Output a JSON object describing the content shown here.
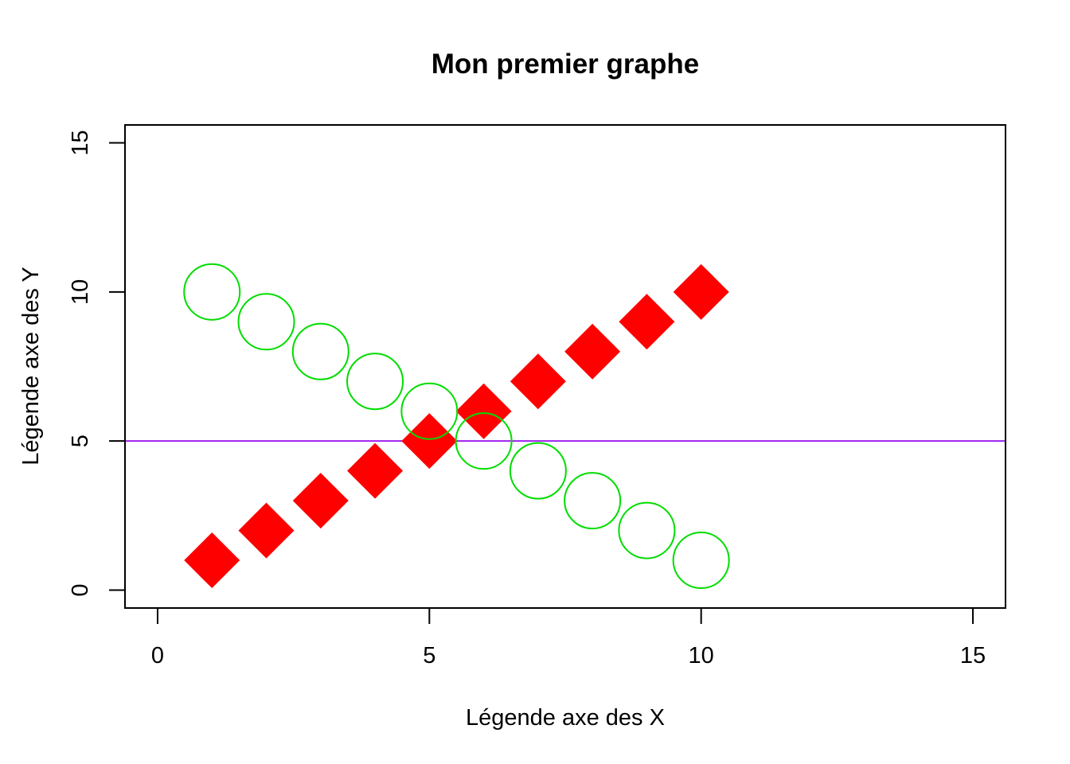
{
  "chart_data": {
    "type": "scatter",
    "title": "Mon premier graphe",
    "xlabel": "Légende axe des X",
    "ylabel": "Légende axe des Y",
    "xlim": [
      -0.6,
      15.6
    ],
    "ylim": [
      -0.6,
      15.6
    ],
    "x_ticks": [
      "0",
      "5",
      "10",
      "15"
    ],
    "y_ticks": [
      "0",
      "5",
      "10",
      "15"
    ],
    "grid": false,
    "legend": "none",
    "series": [
      {
        "marker": "filled-diamond",
        "color": "#FF0000",
        "x": [
          1,
          2,
          3,
          4,
          5,
          6,
          7,
          8,
          9,
          10
        ],
        "y": [
          1,
          2,
          3,
          4,
          5,
          6,
          7,
          8,
          9,
          10
        ]
      },
      {
        "marker": "open-circle",
        "color": "#00DD00",
        "x": [
          1,
          2,
          3,
          4,
          5,
          6,
          7,
          8,
          9,
          10
        ],
        "y": [
          10,
          9,
          8,
          7,
          6,
          5,
          4,
          3,
          2,
          1
        ]
      }
    ],
    "hline": {
      "y": 5,
      "color": "#A020F0"
    }
  }
}
